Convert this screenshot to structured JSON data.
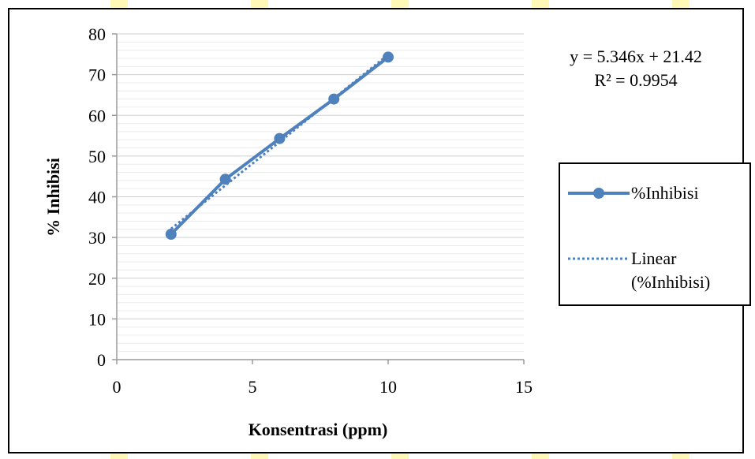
{
  "chart_data": {
    "type": "line",
    "title": "",
    "xlabel": "Konsentrasi (ppm)",
    "ylabel": "% Inhibisi",
    "xlim": [
      0,
      15
    ],
    "ylim": [
      0,
      80
    ],
    "xticks": [
      0,
      5,
      10,
      15
    ],
    "yticks": [
      0,
      10,
      20,
      30,
      40,
      50,
      60,
      70,
      80
    ],
    "xtick_labels": [
      "0",
      "5",
      "10",
      "15"
    ],
    "ytick_labels": [
      "0",
      "10",
      "20",
      "30",
      "40",
      "50",
      "60",
      "70",
      "80"
    ],
    "grid": true,
    "legend_position": "right",
    "series": [
      {
        "name": "%Inhibisi",
        "x": [
          2,
          4,
          6,
          8,
          10
        ],
        "y": [
          30.8,
          44.3,
          54.3,
          64.0,
          74.3
        ],
        "color": "#4f81bd",
        "style": "solid-markers"
      },
      {
        "name": "Linear (%Inhibisi)",
        "x": [
          2,
          10
        ],
        "y": [
          32.112,
          74.88
        ],
        "color": "#4f81bd",
        "style": "dotted"
      }
    ],
    "annotations": {
      "equation": "y = 5.346x + 21.42",
      "r_squared": "R² = 0.9954"
    }
  },
  "legend": {
    "items": [
      "%Inhibisi",
      "Linear",
      "(%Inhibisi)"
    ]
  }
}
